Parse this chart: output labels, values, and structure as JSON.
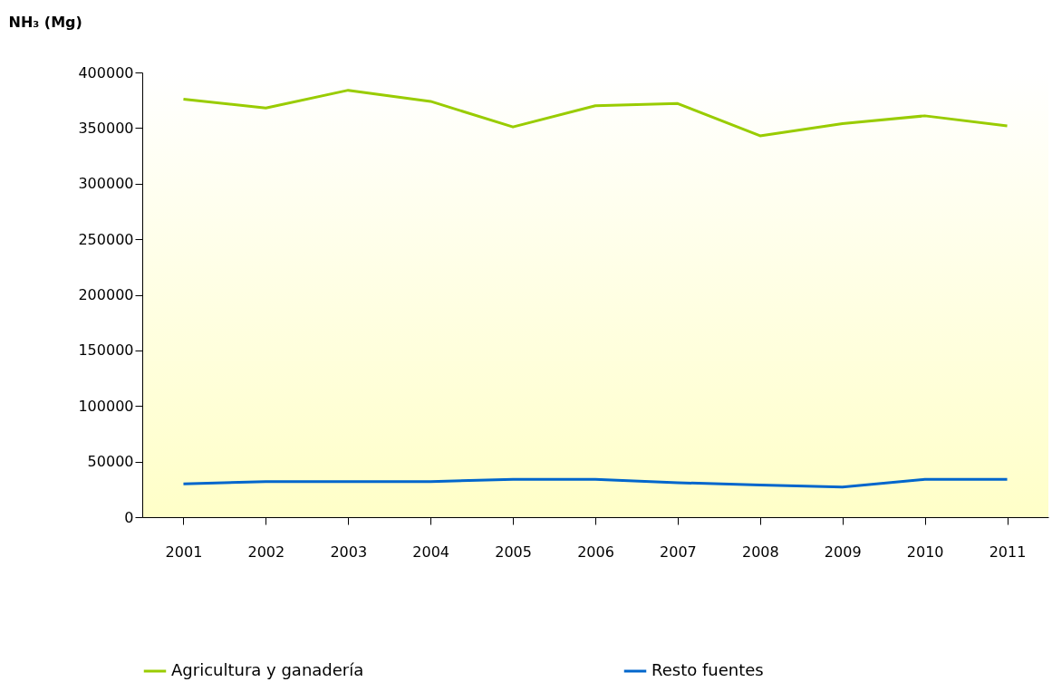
{
  "chart_data": {
    "type": "line",
    "ylabel": "NH₃ (Mg)",
    "categories": [
      "2001",
      "2002",
      "2003",
      "2004",
      "2005",
      "2006",
      "2007",
      "2008",
      "2009",
      "2010",
      "2011"
    ],
    "series": [
      {
        "name": "Agricultura y ganadería",
        "color": "#99cc00",
        "values": [
          376000,
          368000,
          384000,
          374000,
          351000,
          370000,
          372000,
          343000,
          354000,
          361000,
          352000
        ]
      },
      {
        "name": "Resto fuentes",
        "color": "#0066cc",
        "values": [
          30000,
          32000,
          32000,
          32000,
          34000,
          34000,
          31000,
          29000,
          27000,
          34000,
          34000
        ]
      }
    ],
    "ylim": [
      0,
      400000
    ],
    "yticks": [
      0,
      50000,
      100000,
      150000,
      200000,
      250000,
      300000,
      350000,
      400000
    ],
    "grid": false,
    "legend": "bottom",
    "marker": "none",
    "line_style": "solid"
  }
}
